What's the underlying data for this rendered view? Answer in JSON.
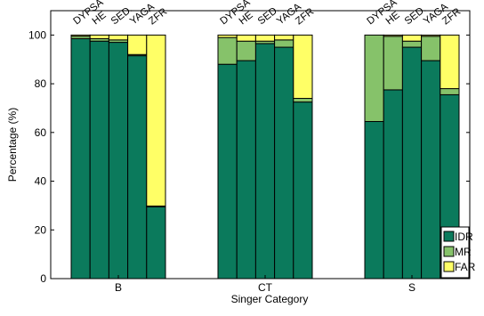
{
  "chart_data": {
    "type": "bar",
    "stacked": true,
    "xlabel": "Singer Category",
    "ylabel": "Percentage (%)",
    "ylim": [
      0,
      110
    ],
    "yticks": [
      0,
      20,
      40,
      60,
      80,
      100
    ],
    "categories": [
      "B",
      "CT",
      "S"
    ],
    "methods": [
      "DYPSA",
      "HE",
      "SED.",
      "YAGA",
      "ZFR"
    ],
    "series": [
      {
        "name": "IDR",
        "color": "#0b7a5c",
        "values": [
          [
            98.5,
            97.5,
            97,
            91.5,
            29.5
          ],
          [
            88,
            89.5,
            96.5,
            95,
            72.5
          ],
          [
            64.5,
            77.5,
            95,
            89.5,
            75.5
          ]
        ]
      },
      {
        "name": "MR",
        "color": "#86c26a",
        "values": [
          [
            1,
            1,
            1,
            0.5,
            0.3
          ],
          [
            11,
            8,
            1,
            3,
            1.5
          ],
          [
            35.5,
            22,
            2.5,
            10,
            2.5
          ]
        ]
      },
      {
        "name": "FAR",
        "color": "#ffff66",
        "values": [
          [
            0.5,
            1.5,
            2,
            8,
            70.2
          ],
          [
            1,
            2.5,
            2.5,
            2,
            26
          ],
          [
            0,
            0.5,
            2.5,
            0.5,
            22
          ]
        ]
      }
    ],
    "legend_position": "bottom-right",
    "grid": false
  }
}
